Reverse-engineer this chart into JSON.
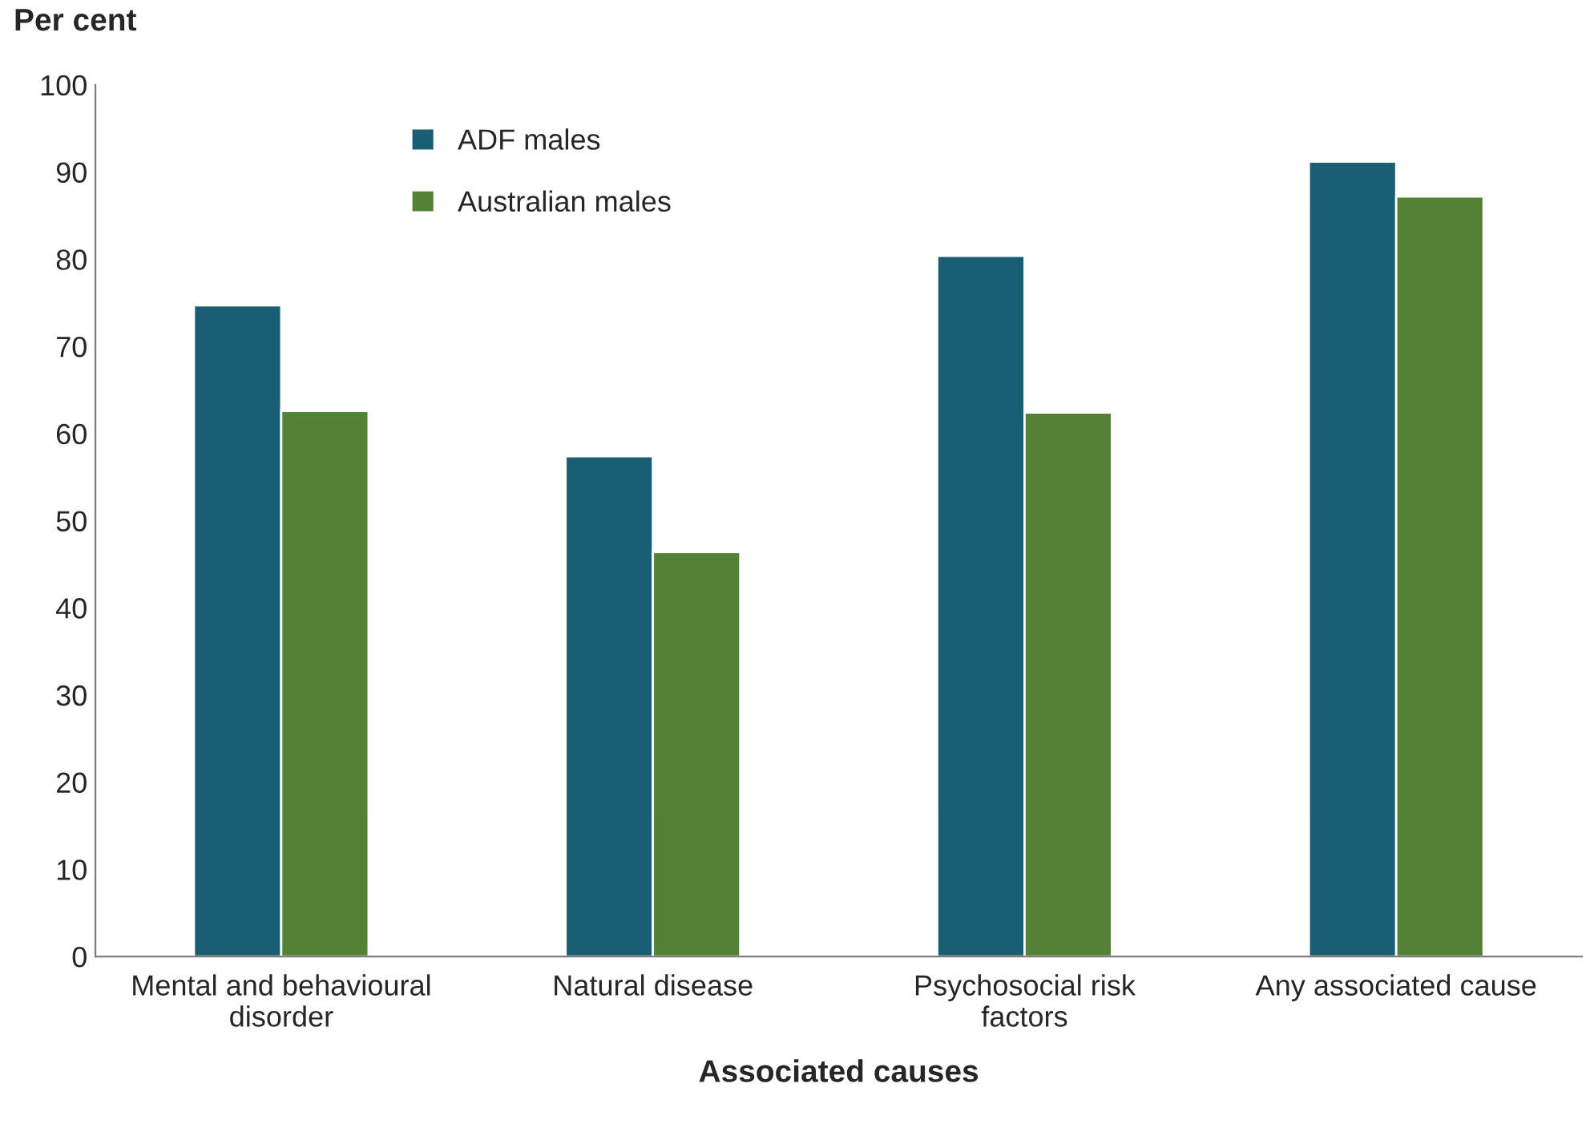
{
  "chart_data": {
    "type": "bar",
    "xlabel": "Associated causes",
    "ylabel": "Per cent",
    "categories": [
      "Mental and behavioural\ndisorder",
      "Natural disease",
      "Psychosocial risk\nfactors",
      "Any associated cause"
    ],
    "series": [
      {
        "name": "ADF males",
        "color": "#1a5e74",
        "values": [
          74.7,
          57.4,
          80.4,
          91.2
        ]
      },
      {
        "name": "Australian males",
        "color": "#538135",
        "values": [
          62.6,
          46.4,
          62.4,
          87.2
        ]
      }
    ],
    "ylim": [
      0,
      100
    ],
    "yticks": [
      0,
      10,
      20,
      30,
      40,
      50,
      60,
      70,
      80,
      90,
      100
    ],
    "grid": false,
    "legend": "top"
  }
}
